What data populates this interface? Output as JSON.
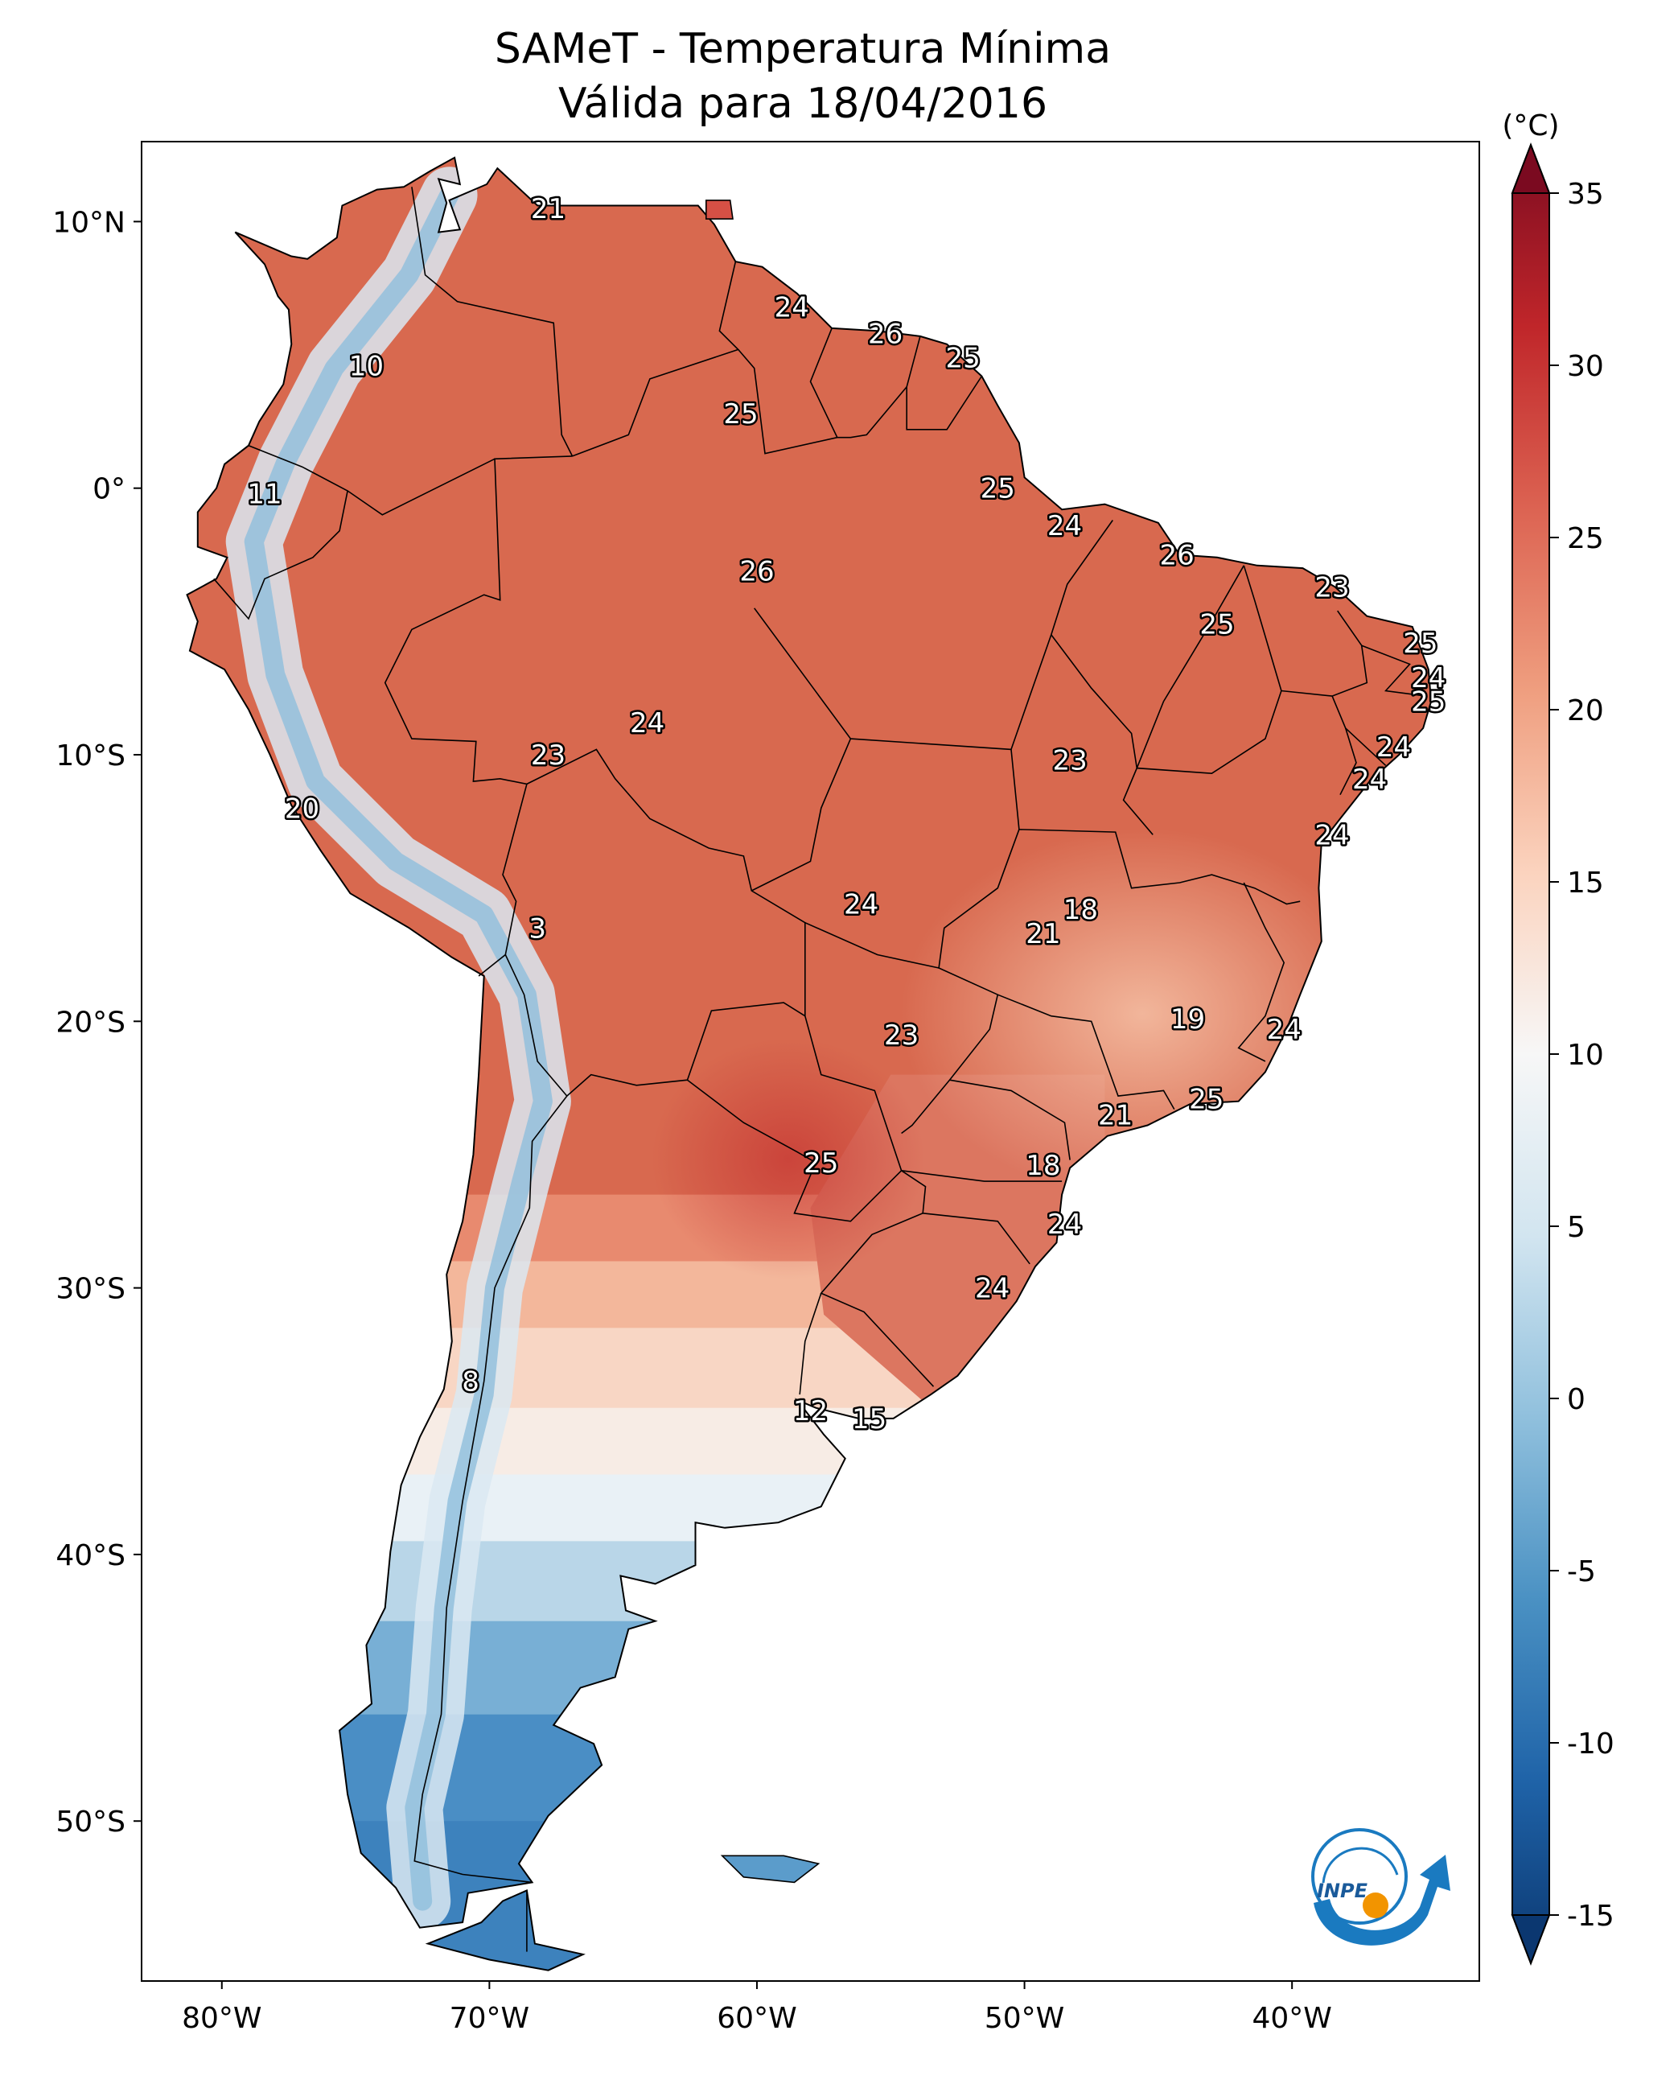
{
  "title_line1": "SAMeT - Temperatura Mínima",
  "title_line2": "Válida para 18/04/2016",
  "colorbar": {
    "unit": "(°C)",
    "ticks": [
      "35",
      "30",
      "25",
      "20",
      "15",
      "10",
      "5",
      "0",
      "-5",
      "-10",
      "-15"
    ],
    "min": -15,
    "max": 35,
    "colors": [
      "#0b3770",
      "#1f63a8",
      "#4a91c3",
      "#90c0dd",
      "#d2e5f0",
      "#f7f7f7",
      "#fbd3be",
      "#ef9e7f",
      "#dc6352",
      "#c0262a",
      "#7b0a20"
    ]
  },
  "x_axis_labels": [
    "80°W",
    "70°W",
    "60°W",
    "50°W",
    "40°W"
  ],
  "y_axis_labels": [
    "10°N",
    "0°",
    "10°S",
    "20°S",
    "30°S",
    "40°S",
    "50°S"
  ],
  "map_extent": {
    "lon": [
      -83,
      -33
    ],
    "lat": [
      -56,
      13
    ]
  },
  "logo": {
    "text": "INPE",
    "colors": [
      "#1a7ac0",
      "#f29400"
    ]
  },
  "station_values": [
    {
      "value": "21",
      "lon": -67.8,
      "lat": 10.5
    },
    {
      "value": "10",
      "lon": -74.6,
      "lat": 4.6
    },
    {
      "value": "11",
      "lon": -78.4,
      "lat": -0.2
    },
    {
      "value": "24",
      "lon": -58.7,
      "lat": 6.8
    },
    {
      "value": "26",
      "lon": -55.2,
      "lat": 5.8
    },
    {
      "value": "25",
      "lon": -52.3,
      "lat": 4.9
    },
    {
      "value": "25",
      "lon": -60.6,
      "lat": 2.8
    },
    {
      "value": "25",
      "lon": -51.0,
      "lat": 0.0
    },
    {
      "value": "24",
      "lon": -48.5,
      "lat": -1.4
    },
    {
      "value": "26",
      "lon": -44.3,
      "lat": -2.5
    },
    {
      "value": "23",
      "lon": -38.5,
      "lat": -3.7
    },
    {
      "value": "26",
      "lon": -60.0,
      "lat": -3.1
    },
    {
      "value": "25",
      "lon": -42.8,
      "lat": -5.1
    },
    {
      "value": "25",
      "lon": -35.2,
      "lat": -5.8
    },
    {
      "value": "24",
      "lon": -34.9,
      "lat": -7.1
    },
    {
      "value": "25",
      "lon": -34.9,
      "lat": -8.0
    },
    {
      "value": "24",
      "lon": -64.1,
      "lat": -8.8
    },
    {
      "value": "23",
      "lon": -67.8,
      "lat": -10.0
    },
    {
      "value": "23",
      "lon": -48.3,
      "lat": -10.2
    },
    {
      "value": "24",
      "lon": -36.2,
      "lat": -9.7
    },
    {
      "value": "24",
      "lon": -37.1,
      "lat": -10.9
    },
    {
      "value": "20",
      "lon": -77.0,
      "lat": -12.0
    },
    {
      "value": "24",
      "lon": -38.5,
      "lat": -13.0
    },
    {
      "value": "24",
      "lon": -56.1,
      "lat": -15.6
    },
    {
      "value": "18",
      "lon": -47.9,
      "lat": -15.8
    },
    {
      "value": "21",
      "lon": -49.3,
      "lat": -16.7
    },
    {
      "value": "3",
      "lon": -68.2,
      "lat": -16.5
    },
    {
      "value": "19",
      "lon": -43.9,
      "lat": -19.9
    },
    {
      "value": "24",
      "lon": -40.3,
      "lat": -20.3
    },
    {
      "value": "23",
      "lon": -54.6,
      "lat": -20.5
    },
    {
      "value": "25",
      "lon": -43.2,
      "lat": -22.9
    },
    {
      "value": "21",
      "lon": -46.6,
      "lat": -23.5
    },
    {
      "value": "18",
      "lon": -49.3,
      "lat": -25.4
    },
    {
      "value": "25",
      "lon": -57.6,
      "lat": -25.3
    },
    {
      "value": "24",
      "lon": -48.5,
      "lat": -27.6
    },
    {
      "value": "24",
      "lon": -51.2,
      "lat": -30.0
    },
    {
      "value": "8",
      "lon": -70.7,
      "lat": -33.5
    },
    {
      "value": "12",
      "lon": -58.0,
      "lat": -34.6
    },
    {
      "value": "15",
      "lon": -55.8,
      "lat": -34.9
    }
  ]
}
